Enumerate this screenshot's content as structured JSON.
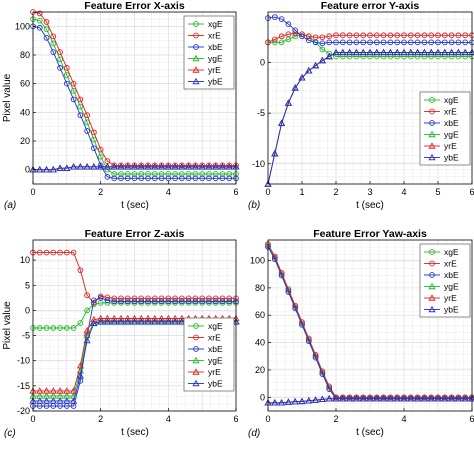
{
  "figure": {
    "panel_labels": [
      "(a)",
      "(b)",
      "(c)",
      "(d)"
    ]
  },
  "chart_data": [
    {
      "type": "line",
      "title": "Feature Error X-axis",
      "xlabel": "t (sec)",
      "ylabel": "Pixel value",
      "xlim": [
        0,
        6
      ],
      "ylim": [
        -10,
        110
      ],
      "xticks": [
        0,
        2,
        4,
        6
      ],
      "yticks": [
        0,
        20,
        40,
        60,
        80,
        100
      ],
      "grid": true,
      "legend": "top-right",
      "x": [
        0,
        0.2,
        0.4,
        0.6,
        0.8,
        1.0,
        1.2,
        1.4,
        1.6,
        1.8,
        2.0,
        2.2,
        2.4,
        2.6,
        2.8,
        3.0,
        3.2,
        3.4,
        3.6,
        3.8,
        4.0,
        4.2,
        4.4,
        4.6,
        4.8,
        5.0,
        5.2,
        5.4,
        5.6,
        5.8,
        6.0
      ],
      "series": [
        {
          "name": "xgE",
          "color": "#22bb22",
          "marker": "circle",
          "values": [
            105,
            104,
            98,
            88,
            77,
            66,
            55,
            44,
            33,
            21,
            9,
            0,
            -3,
            -3,
            -3,
            -3,
            -3,
            -3,
            -3,
            -3,
            -3,
            -3,
            -3,
            -3,
            -3,
            -3,
            -3,
            -3,
            -3,
            -3,
            -3
          ]
        },
        {
          "name": "xrE",
          "color": "#dd2222",
          "marker": "circle",
          "values": [
            110,
            109,
            103,
            93,
            82,
            71,
            60,
            49,
            38,
            26,
            14,
            6,
            3,
            3,
            3,
            3,
            3,
            3,
            3,
            3,
            3,
            3,
            3,
            3,
            3,
            3,
            3,
            3,
            3,
            3,
            3
          ]
        },
        {
          "name": "xbE",
          "color": "#2233cc",
          "marker": "circle",
          "values": [
            100,
            99,
            92,
            82,
            71,
            60,
            49,
            38,
            27,
            15,
            3,
            -5,
            -6,
            -6,
            -6,
            -6,
            -6,
            -6,
            -6,
            -6,
            -6,
            -6,
            -6,
            -6,
            -6,
            -6,
            -6,
            -6,
            -6,
            -6,
            -6
          ]
        },
        {
          "name": "ygE",
          "color": "#22bb22",
          "marker": "triangle",
          "values": [
            0,
            0,
            0,
            0,
            1,
            1,
            2,
            2,
            2,
            2,
            2,
            2,
            2,
            2,
            2,
            2,
            2,
            2,
            2,
            2,
            2,
            2,
            2,
            2,
            2,
            2,
            2,
            2,
            2,
            2,
            2
          ]
        },
        {
          "name": "yrE",
          "color": "#dd2222",
          "marker": "triangle",
          "values": [
            0,
            0,
            0,
            0,
            1,
            1,
            2,
            2,
            2,
            2,
            2,
            2,
            2,
            2,
            2,
            2,
            2,
            2,
            2,
            2,
            2,
            2,
            2,
            2,
            2,
            2,
            2,
            2,
            2,
            2,
            2
          ]
        },
        {
          "name": "ybE",
          "color": "#2233cc",
          "marker": "triangle",
          "values": [
            0,
            0,
            0,
            0,
            1,
            1,
            2,
            2,
            2,
            2,
            2,
            2,
            2,
            2,
            2,
            2,
            2,
            2,
            2,
            2,
            2,
            2,
            2,
            2,
            2,
            2,
            2,
            2,
            2,
            2,
            2
          ]
        }
      ]
    },
    {
      "type": "line",
      "title": "Feature error Y-axis",
      "xlabel": "t (sec)",
      "ylabel": "",
      "xlim": [
        0,
        6
      ],
      "ylim": [
        -12,
        5
      ],
      "xticks": [
        0,
        1,
        2,
        3,
        4,
        5,
        6
      ],
      "yticks": [
        -10,
        -5,
        0
      ],
      "grid": true,
      "legend": "bottom-right",
      "x": [
        0,
        0.2,
        0.4,
        0.6,
        0.8,
        1.0,
        1.2,
        1.4,
        1.6,
        1.8,
        2.0,
        2.2,
        2.4,
        2.6,
        2.8,
        3.0,
        3.2,
        3.4,
        3.6,
        3.8,
        4.0,
        4.2,
        4.4,
        4.6,
        4.8,
        5.0,
        5.2,
        5.4,
        5.6,
        5.8,
        6.0
      ],
      "series": [
        {
          "name": "xgE",
          "color": "#22bb22",
          "marker": "circle",
          "values": [
            2,
            2,
            2,
            2.3,
            2.6,
            2.8,
            2.6,
            2,
            1.3,
            0.9,
            0.6,
            0.6,
            0.6,
            0.6,
            0.6,
            0.6,
            0.6,
            0.6,
            0.6,
            0.6,
            0.6,
            0.6,
            0.6,
            0.6,
            0.6,
            0.6,
            0.6,
            0.6,
            0.6,
            0.6,
            0.6
          ]
        },
        {
          "name": "xrE",
          "color": "#dd2222",
          "marker": "circle",
          "values": [
            2,
            2.3,
            2.6,
            2.8,
            2.9,
            2.8,
            2.6,
            2.5,
            2.5,
            2.6,
            2.7,
            2.7,
            2.7,
            2.7,
            2.7,
            2.7,
            2.7,
            2.7,
            2.7,
            2.7,
            2.7,
            2.7,
            2.7,
            2.7,
            2.7,
            2.7,
            2.7,
            2.7,
            2.7,
            2.7,
            2.7
          ]
        },
        {
          "name": "xbE",
          "color": "#2233cc",
          "marker": "circle",
          "values": [
            4.4,
            4.5,
            4.3,
            3.8,
            3.2,
            2.6,
            2.2,
            2.0,
            1.9,
            2.0,
            2.0,
            2.0,
            2.0,
            2.0,
            2.0,
            2.0,
            2.0,
            2.0,
            2.0,
            2.0,
            2.0,
            2.0,
            2.0,
            2.0,
            2.0,
            2.0,
            2.0,
            2.0,
            2.0,
            2.0,
            2.0
          ]
        },
        {
          "name": "ygE",
          "color": "#22bb22",
          "marker": "triangle",
          "values": [
            -12,
            -9,
            -6,
            -4,
            -2.5,
            -1.5,
            -0.8,
            -0.3,
            0.2,
            0.6,
            1.0,
            1.0,
            1.0,
            1.0,
            1.0,
            1.0,
            1.0,
            1.0,
            1.0,
            1.0,
            1.0,
            1.0,
            1.0,
            1.0,
            1.0,
            1.0,
            1.0,
            1.0,
            1.0,
            1.0,
            1.0
          ]
        },
        {
          "name": "yrE",
          "color": "#dd2222",
          "marker": "triangle",
          "values": [
            -12,
            -9,
            -6,
            -4,
            -2.5,
            -1.5,
            -0.8,
            -0.3,
            0.2,
            0.6,
            1.0,
            1.0,
            1.0,
            1.0,
            1.0,
            1.0,
            1.0,
            1.0,
            1.0,
            1.0,
            1.0,
            1.0,
            1.0,
            1.0,
            1.0,
            1.0,
            1.0,
            1.0,
            1.0,
            1.0,
            1.0
          ]
        },
        {
          "name": "ybE",
          "color": "#2233cc",
          "marker": "triangle",
          "values": [
            -12,
            -9,
            -6,
            -4,
            -2.5,
            -1.5,
            -0.8,
            -0.3,
            0.2,
            0.6,
            1.0,
            1.0,
            1.0,
            1.0,
            1.0,
            1.0,
            1.0,
            1.0,
            1.0,
            1.0,
            1.0,
            1.0,
            1.0,
            1.0,
            1.0,
            1.0,
            1.0,
            1.0,
            1.0,
            1.0,
            1.0
          ]
        }
      ]
    },
    {
      "type": "line",
      "title": "Feature Error Z-axis",
      "xlabel": "t (sec)",
      "ylabel": "Pixel value",
      "xlim": [
        0,
        6
      ],
      "ylim": [
        -20,
        14
      ],
      "xticks": [
        0,
        2,
        4,
        6
      ],
      "yticks": [
        -20,
        -15,
        -10,
        -5,
        0,
        5,
        10
      ],
      "grid": true,
      "legend": "bottom-right",
      "x": [
        0,
        0.2,
        0.4,
        0.6,
        0.8,
        1.0,
        1.2,
        1.4,
        1.6,
        1.8,
        2.0,
        2.2,
        2.4,
        2.6,
        2.8,
        3.0,
        3.2,
        3.4,
        3.6,
        3.8,
        4.0,
        4.2,
        4.4,
        4.6,
        4.8,
        5.0,
        5.2,
        5.4,
        5.6,
        5.8,
        6.0
      ],
      "series": [
        {
          "name": "xgE",
          "color": "#22bb22",
          "marker": "circle",
          "values": [
            -3.5,
            -3.5,
            -3.5,
            -3.5,
            -3.5,
            -3.5,
            -3.5,
            -2.5,
            0,
            1.2,
            1.5,
            1.5,
            1.5,
            1.5,
            1.5,
            1.5,
            1.5,
            1.5,
            1.5,
            1.5,
            1.5,
            1.5,
            1.5,
            1.5,
            1.5,
            1.5,
            1.5,
            1.5,
            1.5,
            1.5,
            1.5
          ]
        },
        {
          "name": "xrE",
          "color": "#dd2222",
          "marker": "circle",
          "values": [
            11.5,
            11.5,
            11.5,
            11.5,
            11.5,
            11.5,
            11.5,
            8,
            3,
            1.5,
            2.8,
            2.6,
            2.4,
            2.4,
            2.4,
            2.4,
            2.4,
            2.4,
            2.4,
            2.4,
            2.4,
            2.4,
            2.4,
            2.4,
            2.4,
            2.4,
            2.4,
            2.4,
            2.4,
            2.4,
            2.4
          ]
        },
        {
          "name": "xbE",
          "color": "#2233cc",
          "marker": "circle",
          "values": [
            -19,
            -19,
            -19,
            -19,
            -19,
            -19,
            -19,
            -14,
            -5,
            2,
            2.5,
            2.0,
            1.8,
            1.8,
            1.8,
            1.8,
            1.8,
            1.8,
            1.8,
            1.8,
            1.8,
            1.8,
            1.8,
            1.8,
            1.8,
            1.8,
            1.8,
            1.8,
            1.8,
            1.8,
            1.8
          ]
        },
        {
          "name": "ygE",
          "color": "#22bb22",
          "marker": "triangle",
          "values": [
            -17,
            -17,
            -17,
            -17,
            -17,
            -17,
            -17,
            -12,
            -5,
            -2.5,
            -2.2,
            -2.2,
            -2.2,
            -2.2,
            -2.2,
            -2.2,
            -2.2,
            -2.2,
            -2.2,
            -2.2,
            -2.2,
            -2.2,
            -2.2,
            -2.2,
            -2.2,
            -2.2,
            -2.2,
            -2.2,
            -2.2,
            -2.2,
            -2.2
          ]
        },
        {
          "name": "yrE",
          "color": "#dd2222",
          "marker": "triangle",
          "values": [
            -16,
            -16,
            -16,
            -16,
            -16,
            -16,
            -16,
            -11,
            -4,
            -1.8,
            -1.6,
            -1.6,
            -1.6,
            -1.6,
            -1.6,
            -1.6,
            -1.6,
            -1.6,
            -1.6,
            -1.6,
            -1.6,
            -1.6,
            -1.6,
            -1.6,
            -1.6,
            -1.6,
            -1.6,
            -1.6,
            -1.6,
            -1.6,
            -1.6
          ]
        },
        {
          "name": "ybE",
          "color": "#2233cc",
          "marker": "triangle",
          "values": [
            -18,
            -18,
            -18,
            -18,
            -18,
            -18,
            -18,
            -13,
            -6,
            -2.6,
            -2.3,
            -2.3,
            -2.3,
            -2.3,
            -2.3,
            -2.3,
            -2.3,
            -2.3,
            -2.3,
            -2.3,
            -2.3,
            -2.3,
            -2.3,
            -2.3,
            -2.3,
            -2.3,
            -2.3,
            -2.3,
            -2.3,
            -2.3,
            -2.3
          ]
        }
      ]
    },
    {
      "type": "line",
      "title": "Feature Error Yaw-axis",
      "xlabel": "t (sec)",
      "ylabel": "",
      "xlim": [
        0,
        6
      ],
      "ylim": [
        -10,
        115
      ],
      "xticks": [
        0,
        2,
        4,
        6
      ],
      "yticks": [
        0,
        20,
        40,
        60,
        80,
        100
      ],
      "grid": true,
      "legend": "top-right",
      "x": [
        0,
        0.2,
        0.4,
        0.6,
        0.8,
        1.0,
        1.2,
        1.4,
        1.6,
        1.8,
        2.0,
        2.2,
        2.4,
        2.6,
        2.8,
        3.0,
        3.2,
        3.4,
        3.6,
        3.8,
        4.0,
        4.2,
        4.4,
        4.6,
        4.8,
        5.0,
        5.2,
        5.4,
        5.6,
        5.8,
        6.0
      ],
      "series": [
        {
          "name": "xgE",
          "color": "#22bb22",
          "marker": "circle",
          "values": [
            111,
            102,
            90,
            78,
            66,
            54,
            42,
            30,
            18,
            7,
            0,
            0,
            0,
            0,
            0,
            0,
            0,
            0,
            0,
            0,
            0,
            0,
            0,
            0,
            0,
            0,
            0,
            0,
            0,
            0,
            0
          ]
        },
        {
          "name": "xrE",
          "color": "#dd2222",
          "marker": "circle",
          "values": [
            112,
            103,
            91,
            79,
            67,
            55,
            43,
            31,
            19,
            8,
            0,
            0,
            0,
            0,
            0,
            0,
            0,
            0,
            0,
            0,
            0,
            0,
            0,
            0,
            0,
            0,
            0,
            0,
            0,
            0,
            0
          ]
        },
        {
          "name": "xbE",
          "color": "#2233cc",
          "marker": "circle",
          "values": [
            110,
            101,
            89,
            77,
            65,
            53,
            41,
            29,
            17,
            6,
            -1,
            -1,
            -1,
            -1,
            -1,
            -1,
            -1,
            -1,
            -1,
            -1,
            -1,
            -1,
            -1,
            -1,
            -1,
            -1,
            -1,
            -1,
            -1,
            -1,
            -1
          ]
        },
        {
          "name": "ygE",
          "color": "#22bb22",
          "marker": "triangle",
          "values": [
            -4,
            -4,
            -4,
            -3.5,
            -3.2,
            -3,
            -2.5,
            -2,
            -1.5,
            -1,
            -1,
            -1,
            -1,
            -1,
            -1,
            -1,
            -1,
            -1,
            -1,
            -1,
            -1,
            -1,
            -1,
            -1,
            -1,
            -1,
            -1,
            -1,
            -1,
            -1,
            -1
          ]
        },
        {
          "name": "yrE",
          "color": "#dd2222",
          "marker": "triangle",
          "values": [
            -4,
            -4,
            -4,
            -3.5,
            -3.2,
            -3,
            -2.5,
            -2,
            -1.5,
            -1,
            -1,
            -1,
            -1,
            -1,
            -1,
            -1,
            -1,
            -1,
            -1,
            -1,
            -1,
            -1,
            -1,
            -1,
            -1,
            -1,
            -1,
            -1,
            -1,
            -1,
            -1
          ]
        },
        {
          "name": "ybE",
          "color": "#2233cc",
          "marker": "triangle",
          "values": [
            -4,
            -4,
            -4,
            -3.5,
            -3.2,
            -3,
            -2.5,
            -2,
            -1.5,
            -1,
            -1,
            -1,
            -1,
            -1,
            -1,
            -1,
            -1,
            -1,
            -1,
            -1,
            -1,
            -1,
            -1,
            -1,
            -1,
            -1,
            -1,
            -1,
            -1,
            -1,
            -1
          ]
        }
      ]
    }
  ]
}
